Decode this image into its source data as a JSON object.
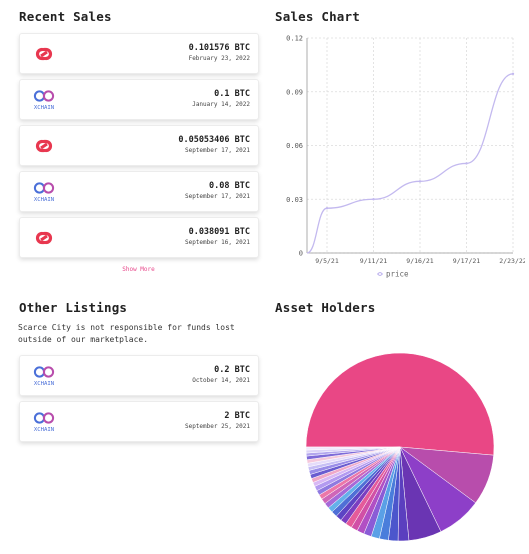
{
  "recent_sales": {
    "title": "Recent Sales",
    "items": [
      {
        "logo": "pink-link-logo",
        "amount": "0.101576 BTC",
        "date": "February 23, 2022"
      },
      {
        "logo": "xchain-logo",
        "logo_text": "XCHAIN",
        "amount": "0.1 BTC",
        "date": "January 14, 2022"
      },
      {
        "logo": "pink-link-logo",
        "amount": "0.05053406 BTC",
        "date": "September 17, 2021"
      },
      {
        "logo": "xchain-logo",
        "logo_text": "XCHAIN",
        "amount": "0.08 BTC",
        "date": "September 17, 2021"
      },
      {
        "logo": "pink-link-logo",
        "amount": "0.038091 BTC",
        "date": "September 16, 2021"
      }
    ],
    "show_more_label": "Show More"
  },
  "sales_chart": {
    "title": "Sales Chart",
    "legend_label": "price"
  },
  "chart_data": {
    "type": "line",
    "x": [
      "9/5/21",
      "9/11/21",
      "9/16/21",
      "9/17/21",
      "2/23/22"
    ],
    "series": [
      {
        "name": "price",
        "values": [
          0.025,
          0.03,
          0.04,
          0.05,
          0.1
        ]
      }
    ],
    "y_ticks": [
      "0",
      "0.03",
      "0.06",
      "0.09",
      "0.12"
    ],
    "ylim": [
      0,
      0.12
    ],
    "grid": true,
    "line_color": "#c3b9ef",
    "legend_position": "bottom"
  },
  "other_listings": {
    "title": "Other Listings",
    "disclaimer": "Scarce City is not responsible for funds lost outside of our marketplace.",
    "items": [
      {
        "logo": "xchain-logo",
        "logo_text": "XCHAIN",
        "amount": "0.2 BTC",
        "date": "October 14, 2021"
      },
      {
        "logo": "xchain-logo",
        "logo_text": "XCHAIN",
        "amount": "2 BTC",
        "date": "September 25, 2021"
      }
    ]
  },
  "asset_holders": {
    "title": "Asset Holders",
    "pie": {
      "type": "pie",
      "slices": [
        0.5,
        0.085,
        0.075,
        0.055,
        0.018,
        0.016,
        0.015,
        0.014,
        0.013,
        0.012,
        0.011,
        0.011,
        0.01,
        0.01,
        0.01,
        0.009,
        0.009,
        0.009,
        0.008,
        0.008,
        0.008,
        0.007,
        0.007,
        0.007,
        0.007,
        0.006,
        0.006,
        0.006,
        0.006,
        0.005,
        0.005,
        0.005
      ],
      "colors": [
        "#e94785",
        "#b84dac",
        "#8d3fc8",
        "#6a35b3",
        "#5b3fbf",
        "#4c56cc",
        "#4a7ddb",
        "#5aa0e6",
        "#8a5cd6",
        "#b14fc4",
        "#d150a6",
        "#e45b9a",
        "#7b3ec0",
        "#5c44c4",
        "#4f6fd6",
        "#64b0ea",
        "#a66ad8",
        "#cf66b8",
        "#ec77a8",
        "#8f7ae0",
        "#b39af0",
        "#d9b8f4",
        "#f0a8c8",
        "#6a5cd0",
        "#9a8de8",
        "#c7bff5",
        "#e6dcfa",
        "#f5c8dc",
        "#7e6ad8",
        "#b3a6ee",
        "#dcd3f8",
        "#f2e8fc"
      ]
    }
  }
}
